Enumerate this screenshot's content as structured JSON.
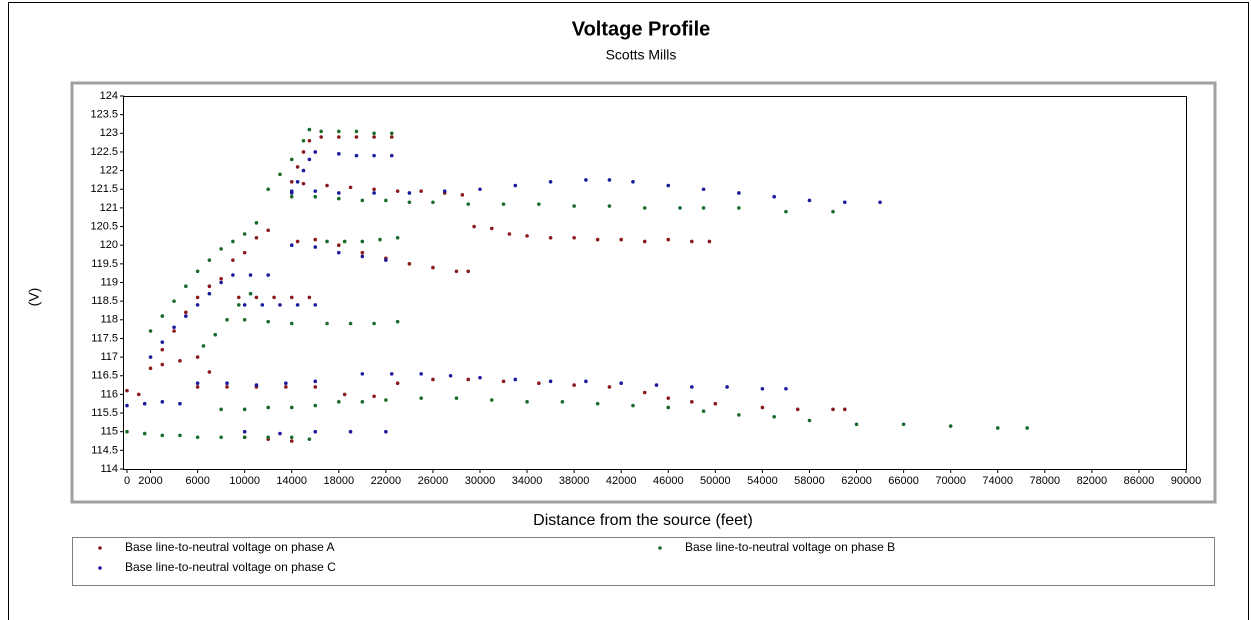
{
  "chart_data": {
    "type": "scatter",
    "title": "Voltage Profile",
    "subtitle": "Scotts Mills",
    "x_label": "Distance from the source (feet)",
    "y_label": "(V)",
    "xlim": [
      0,
      90000
    ],
    "ylim": [
      114,
      124
    ],
    "xticks": [
      0,
      2000,
      6000,
      10000,
      14000,
      18000,
      22000,
      26000,
      30000,
      34000,
      38000,
      42000,
      46000,
      50000,
      54000,
      58000,
      62000,
      66000,
      70000,
      74000,
      78000,
      82000,
      86000,
      90000
    ],
    "yticks": [
      114,
      114.5,
      115,
      115.5,
      116,
      116.5,
      117,
      117.5,
      118,
      118.5,
      119,
      119.5,
      120,
      120.5,
      121,
      121.5,
      122,
      122.5,
      123,
      123.5,
      124
    ],
    "grid": false,
    "series": [
      {
        "name": "Base line-to-neutral voltage on phase A",
        "color": "#8b1a1a",
        "x": [
          14000,
          14500,
          15000,
          15500,
          16500,
          18000,
          19500,
          21000,
          22500,
          15000,
          17000,
          19000,
          21000,
          23000,
          25000,
          27000,
          28500,
          29500,
          31000,
          32500,
          34000,
          36000,
          38000,
          40000,
          42000,
          44000,
          46000,
          48000,
          49500,
          14500,
          16000,
          18000,
          20000,
          22000,
          24000,
          26000,
          28000,
          29000,
          2000,
          3000,
          4000,
          5000,
          6000,
          7000,
          8000,
          9000,
          10000,
          11000,
          12000,
          9500,
          11000,
          12500,
          14000,
          15500,
          3000,
          4500,
          6000,
          7000,
          6000,
          8500,
          11000,
          13500,
          16000,
          18500,
          21000,
          23000,
          26000,
          29000,
          32000,
          35000,
          38000,
          41000,
          44000,
          46000,
          48000,
          50000,
          54000,
          57000,
          60000,
          61000,
          10000,
          12000,
          14000,
          0,
          1000
        ],
        "values": [
          121.7,
          122.1,
          122.5,
          122.8,
          122.9,
          122.9,
          122.9,
          122.9,
          122.9,
          121.65,
          121.6,
          121.55,
          121.5,
          121.45,
          121.45,
          121.4,
          121.35,
          120.5,
          120.45,
          120.3,
          120.25,
          120.2,
          120.2,
          120.15,
          120.15,
          120.1,
          120.15,
          120.1,
          120.1,
          120.1,
          120.15,
          120.0,
          119.8,
          119.65,
          119.5,
          119.4,
          119.3,
          119.3,
          116.7,
          117.2,
          117.7,
          118.2,
          118.6,
          118.9,
          119.1,
          119.6,
          119.8,
          120.2,
          120.4,
          118.6,
          118.6,
          118.6,
          118.6,
          118.6,
          116.8,
          116.9,
          117.0,
          116.6,
          116.2,
          116.2,
          116.2,
          116.2,
          116.2,
          116.0,
          115.95,
          116.3,
          116.4,
          116.4,
          116.35,
          116.3,
          116.25,
          116.2,
          116.05,
          115.9,
          115.8,
          115.75,
          115.65,
          115.6,
          115.6,
          115.6,
          114.85,
          114.8,
          114.75,
          116.1,
          116.0
        ]
      },
      {
        "name": "Base line-to-neutral voltage on phase B",
        "color": "#1a6b2a",
        "x": [
          12000,
          13000,
          14000,
          15000,
          15500,
          16500,
          18000,
          19500,
          21000,
          22500,
          14000,
          16000,
          18000,
          20000,
          22000,
          24000,
          26000,
          29000,
          32000,
          35000,
          38000,
          41000,
          44000,
          47000,
          49000,
          52000,
          56000,
          60000,
          2000,
          3000,
          4000,
          5000,
          6000,
          7000,
          8000,
          9000,
          10000,
          11000,
          17000,
          18500,
          20000,
          21500,
          23000,
          10000,
          12000,
          14000,
          17000,
          19000,
          21000,
          23000,
          6500,
          7500,
          8500,
          9500,
          10500,
          0,
          1500,
          3000,
          4500,
          6000,
          8000,
          10000,
          12000,
          14000,
          15500,
          8000,
          10000,
          12000,
          14000,
          16000,
          18000,
          20000,
          22000,
          25000,
          28000,
          31000,
          34000,
          37000,
          40000,
          43000,
          46000,
          49000,
          52000,
          55000,
          58000,
          62000,
          66000,
          70000,
          74000,
          76500
        ],
        "values": [
          121.5,
          121.9,
          122.3,
          122.8,
          123.1,
          123.05,
          123.05,
          123.05,
          123.0,
          123.0,
          121.3,
          121.3,
          121.25,
          121.2,
          121.2,
          121.15,
          121.15,
          121.1,
          121.1,
          121.1,
          121.05,
          121.05,
          121.0,
          121.0,
          121.0,
          121.0,
          120.9,
          120.9,
          117.7,
          118.1,
          118.5,
          118.9,
          119.3,
          119.6,
          119.9,
          120.1,
          120.3,
          120.6,
          120.1,
          120.1,
          120.1,
          120.15,
          120.2,
          118.0,
          117.95,
          117.9,
          117.9,
          117.9,
          117.9,
          117.95,
          117.3,
          117.6,
          118.0,
          118.4,
          118.7,
          115.0,
          114.95,
          114.9,
          114.9,
          114.85,
          114.85,
          114.85,
          114.85,
          114.85,
          114.8,
          115.6,
          115.6,
          115.65,
          115.65,
          115.7,
          115.8,
          115.8,
          115.85,
          115.9,
          115.9,
          115.85,
          115.8,
          115.8,
          115.75,
          115.7,
          115.65,
          115.55,
          115.45,
          115.4,
          115.3,
          115.2,
          115.2,
          115.15,
          115.1,
          115.1
        ]
      },
      {
        "name": "Base line-to-neutral voltage on phase C",
        "color": "#1a1a9a",
        "x": [
          14000,
          14500,
          15000,
          15500,
          16000,
          18000,
          19500,
          21000,
          22500,
          14000,
          16000,
          18000,
          21000,
          24000,
          27000,
          30000,
          33000,
          36000,
          39000,
          41000,
          43000,
          46000,
          49000,
          52000,
          55000,
          58000,
          61000,
          64000,
          14000,
          16000,
          18000,
          20000,
          22000,
          2000,
          3000,
          4000,
          5000,
          6000,
          7000,
          8000,
          9000,
          10500,
          12000,
          10000,
          11500,
          13000,
          14500,
          16000,
          0,
          1500,
          3000,
          4500,
          6000,
          8500,
          11000,
          13500,
          16000,
          20000,
          22500,
          25000,
          27500,
          30000,
          33000,
          36000,
          39000,
          42000,
          45000,
          48000,
          51000,
          54000,
          56000,
          10000,
          13000,
          16000,
          19000,
          22000
        ],
        "values": [
          121.4,
          121.7,
          122.0,
          122.3,
          122.5,
          122.45,
          122.4,
          122.4,
          122.4,
          121.45,
          121.45,
          121.4,
          121.4,
          121.4,
          121.45,
          121.5,
          121.6,
          121.7,
          121.75,
          121.75,
          121.7,
          121.6,
          121.5,
          121.4,
          121.3,
          121.2,
          121.15,
          121.15,
          120.0,
          119.95,
          119.8,
          119.7,
          119.6,
          117.0,
          117.4,
          117.8,
          118.1,
          118.4,
          118.7,
          119.0,
          119.2,
          119.2,
          119.2,
          118.4,
          118.4,
          118.4,
          118.4,
          118.4,
          115.7,
          115.75,
          115.8,
          115.75,
          116.3,
          116.3,
          116.25,
          116.3,
          116.35,
          116.55,
          116.55,
          116.55,
          116.5,
          116.45,
          116.4,
          116.35,
          116.35,
          116.3,
          116.25,
          116.2,
          116.2,
          116.15,
          116.15,
          115.0,
          114.95,
          115.0,
          115.0,
          115.0
        ]
      }
    ]
  }
}
